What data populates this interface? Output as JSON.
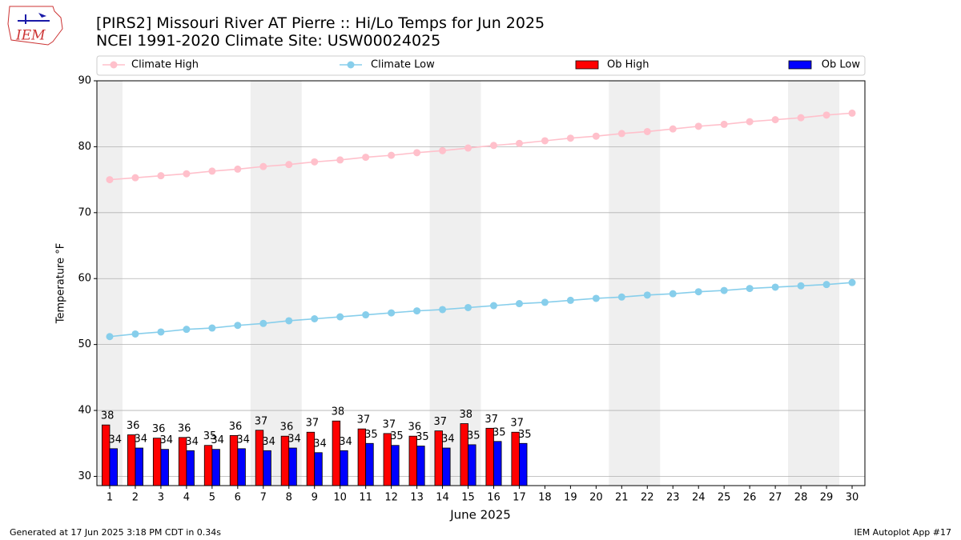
{
  "chart_data": {
    "type": "bar",
    "title": "[PIRS2] Missouri River  AT Pierre :: Hi/Lo Temps for Jun 2025",
    "subtitle": "NCEI 1991-2020 Climate Site: USW00024025",
    "logo_text": "IEM",
    "x_label": "June 2025",
    "y_label": "Temperature °F",
    "footer_left": "Generated at 17 Jun 2025 3:18 PM CDT in 0.34s",
    "footer_right": "IEM Autoplot App #17",
    "x": [
      1,
      2,
      3,
      4,
      5,
      6,
      7,
      8,
      9,
      10,
      11,
      12,
      13,
      14,
      15,
      16,
      17,
      18,
      19,
      20,
      21,
      22,
      23,
      24,
      25,
      26,
      27,
      28,
      29,
      30
    ],
    "xlim": [
      0.5,
      30.5
    ],
    "xticks": [
      1,
      2,
      3,
      4,
      5,
      6,
      7,
      8,
      9,
      10,
      11,
      12,
      13,
      14,
      15,
      16,
      17,
      18,
      19,
      20,
      21,
      22,
      23,
      24,
      25,
      26,
      27,
      28,
      29,
      30
    ],
    "ylim": [
      28.6,
      90
    ],
    "yticks": [
      30,
      40,
      50,
      60,
      70,
      80,
      90
    ],
    "grid": true,
    "shaded_ranges": [
      [
        0.5,
        1.5
      ],
      [
        6.5,
        8.5
      ],
      [
        13.5,
        15.5
      ],
      [
        20.5,
        22.5
      ],
      [
        27.5,
        29.5
      ]
    ],
    "shade_color": "#efefef",
    "series": [
      {
        "name": "Climate High",
        "type": "line",
        "color": "#ffc0cb",
        "values": [
          75.0,
          75.3,
          75.6,
          75.9,
          76.3,
          76.6,
          77.0,
          77.3,
          77.7,
          78.0,
          78.4,
          78.7,
          79.1,
          79.4,
          79.8,
          80.2,
          80.5,
          80.9,
          81.3,
          81.6,
          82.0,
          82.3,
          82.7,
          83.1,
          83.4,
          83.8,
          84.1,
          84.4,
          84.8,
          85.1
        ]
      },
      {
        "name": "Climate Low",
        "type": "line",
        "color": "#87ceeb",
        "values": [
          51.2,
          51.6,
          51.9,
          52.3,
          52.5,
          52.9,
          53.2,
          53.6,
          53.9,
          54.2,
          54.5,
          54.8,
          55.1,
          55.3,
          55.6,
          55.9,
          56.2,
          56.4,
          56.7,
          57.0,
          57.2,
          57.5,
          57.7,
          58.0,
          58.2,
          58.5,
          58.7,
          58.9,
          59.1,
          59.4
        ]
      },
      {
        "name": "Ob High",
        "type": "bar",
        "color": "#ff0000",
        "values": [
          37.8,
          36.3,
          35.8,
          35.9,
          34.7,
          36.2,
          37.0,
          36.1,
          36.7,
          38.4,
          37.2,
          36.5,
          36.1,
          36.9,
          38.0,
          37.3,
          36.7,
          null,
          null,
          null,
          null,
          null,
          null,
          null,
          null,
          null,
          null,
          null,
          null,
          null
        ],
        "value_labels": [
          "38",
          "36",
          "36",
          "36",
          "35",
          "36",
          "37",
          "36",
          "37",
          "38",
          "37",
          "37",
          "36",
          "37",
          "38",
          "37",
          "37",
          null,
          null,
          null,
          null,
          null,
          null,
          null,
          null,
          null,
          null,
          null,
          null,
          null
        ]
      },
      {
        "name": "Ob Low",
        "type": "bar",
        "color": "#0000ff",
        "values": [
          34.2,
          34.3,
          34.1,
          33.9,
          34.1,
          34.2,
          33.9,
          34.3,
          33.6,
          33.9,
          35.0,
          34.7,
          34.6,
          34.3,
          34.8,
          35.3,
          35.0,
          null,
          null,
          null,
          null,
          null,
          null,
          null,
          null,
          null,
          null,
          null,
          null,
          null
        ],
        "value_labels": [
          "34",
          "34",
          "34",
          "34",
          "34",
          "34",
          "34",
          "34",
          "34",
          "34",
          "35",
          "35",
          "35",
          "34",
          "35",
          "35",
          "35",
          null,
          null,
          null,
          null,
          null,
          null,
          null,
          null,
          null,
          null,
          null,
          null,
          null
        ]
      }
    ]
  }
}
